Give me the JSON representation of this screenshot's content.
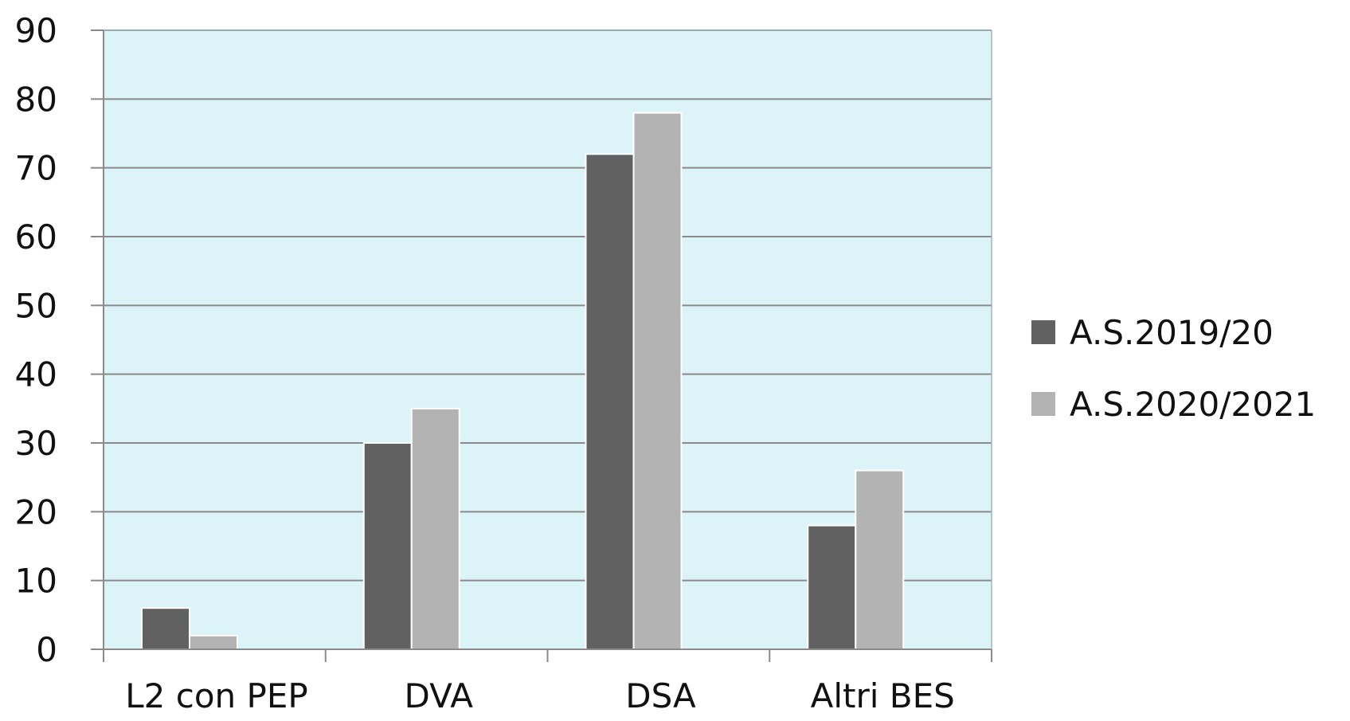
{
  "chart_data": {
    "type": "bar",
    "categories": [
      "L2 con PEP",
      "DVA",
      "DSA",
      "Altri BES"
    ],
    "series": [
      {
        "name": "A.S.2019/20",
        "values": [
          6,
          30,
          72,
          18
        ],
        "color": "#616161"
      },
      {
        "name": "A.S.2020/2021",
        "values": [
          2,
          35,
          78,
          26
        ],
        "color": "#b3b3b3"
      }
    ],
    "ylim": [
      0,
      90
    ],
    "yticks": [
      0,
      10,
      20,
      30,
      40,
      50,
      60,
      70,
      80,
      90
    ],
    "grid": true,
    "legend_position": "right",
    "plot_background": "#dcf3f8",
    "gridline_color": "#8a8a8a"
  }
}
